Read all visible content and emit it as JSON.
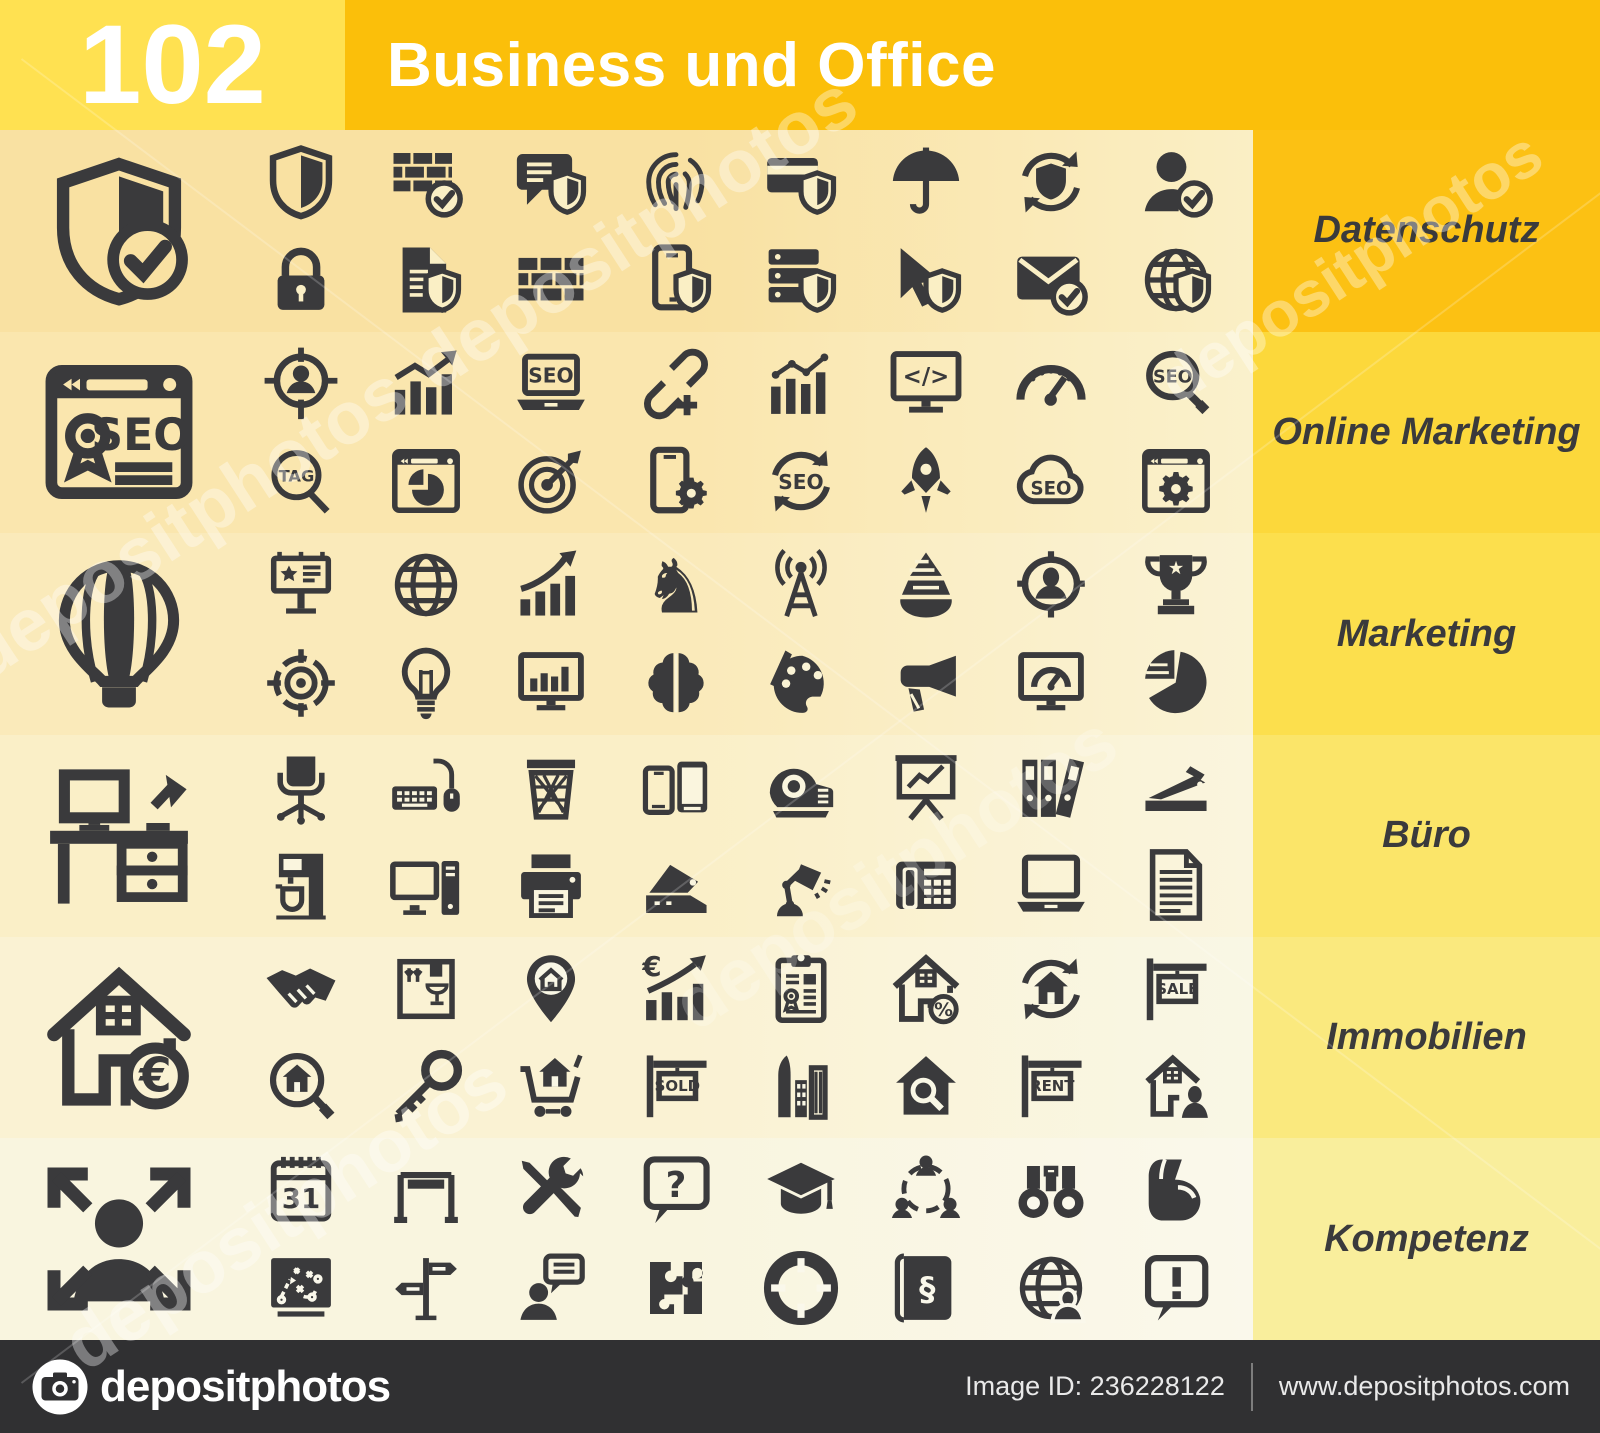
{
  "header": {
    "count": "102",
    "title": "Business und Office"
  },
  "footer": {
    "brand": "depositphotos",
    "image_id": "Image ID: 236228122",
    "url": "www.depositphotos.com"
  },
  "watermark_text": "depositphotos",
  "colors": {
    "count_box": "#FFE151",
    "title_band": "#FBBF0A",
    "footer_bar": "#303032",
    "icon_dark": "#3A3A3C",
    "label_text": "#3A3A3C"
  },
  "rows": [
    {
      "label": "Datenschutz",
      "band_color": "#FCC113",
      "icon_bg": "#F9E1A2",
      "icon_bg_right": "#FAEFC5",
      "large": {
        "name": "shield-check"
      },
      "icons": [
        {
          "name": "shield"
        },
        {
          "name": "firewall-check"
        },
        {
          "name": "chat-shield"
        },
        {
          "name": "fingerprint"
        },
        {
          "name": "credit-card-shield"
        },
        {
          "name": "umbrella"
        },
        {
          "name": "shield-sync"
        },
        {
          "name": "user-check"
        },
        {
          "name": "padlock"
        },
        {
          "name": "document-shield"
        },
        {
          "name": "brick-wall"
        },
        {
          "name": "smartphone-shield"
        },
        {
          "name": "server-shield"
        },
        {
          "name": "cursor-shield"
        },
        {
          "name": "mail-check"
        },
        {
          "name": "globe-shield"
        }
      ]
    },
    {
      "label": "Online Marketing",
      "band_color": "#FCD83B",
      "icon_bg": "#FAE6AE",
      "icon_bg_right": "#FAF1CC",
      "large": {
        "name": "seo-browser",
        "text": "SEO"
      },
      "icons": [
        {
          "name": "target-audience"
        },
        {
          "name": "growth-chart"
        },
        {
          "name": "laptop-seo",
          "text": "SEO"
        },
        {
          "name": "link-plus"
        },
        {
          "name": "analytics-chart"
        },
        {
          "name": "code-monitor",
          "text": "</>"
        },
        {
          "name": "speedometer"
        },
        {
          "name": "seo-magnifier",
          "text": "SEO"
        },
        {
          "name": "tag-magnifier",
          "text": "TAG"
        },
        {
          "name": "browser-pie-chart"
        },
        {
          "name": "dartboard"
        },
        {
          "name": "smartphone-gear"
        },
        {
          "name": "seo-sync",
          "text": "SEO"
        },
        {
          "name": "rocket"
        },
        {
          "name": "seo-cloud",
          "text": "SEO"
        },
        {
          "name": "browser-gear"
        }
      ]
    },
    {
      "label": "Marketing",
      "band_color": "#FCDF4D",
      "icon_bg": "#FAEABA",
      "icon_bg_right": "#FAF3D5",
      "large": {
        "name": "hot-air-balloon"
      },
      "icons": [
        {
          "name": "billboard"
        },
        {
          "name": "globe"
        },
        {
          "name": "growth-arrow"
        },
        {
          "name": "chess-knight"
        },
        {
          "name": "broadcast-tower"
        },
        {
          "name": "sales-funnel"
        },
        {
          "name": "target-user"
        },
        {
          "name": "trophy"
        },
        {
          "name": "crosshair"
        },
        {
          "name": "lightbulb"
        },
        {
          "name": "monitor-chart"
        },
        {
          "name": "brain"
        },
        {
          "name": "paint-palette"
        },
        {
          "name": "megaphone"
        },
        {
          "name": "monitor-gauge"
        },
        {
          "name": "pie-chart"
        }
      ]
    },
    {
      "label": "Büro",
      "band_color": "#FBE569",
      "icon_bg": "#FAEFC7",
      "icon_bg_right": "#FAF5DE",
      "large": {
        "name": "office-desk"
      },
      "icons": [
        {
          "name": "office-chair"
        },
        {
          "name": "keyboard-mouse"
        },
        {
          "name": "waste-basket"
        },
        {
          "name": "phone-tablet"
        },
        {
          "name": "tape-dispenser"
        },
        {
          "name": "presentation-board"
        },
        {
          "name": "ring-binders"
        },
        {
          "name": "stapler"
        },
        {
          "name": "coffee-machine"
        },
        {
          "name": "desktop-computer"
        },
        {
          "name": "printer"
        },
        {
          "name": "hole-punch"
        },
        {
          "name": "desk-lamp"
        },
        {
          "name": "desk-phone"
        },
        {
          "name": "laptop"
        },
        {
          "name": "document"
        }
      ]
    },
    {
      "label": "Immobilien",
      "band_color": "#FAE97E",
      "icon_bg": "#FAF2D3",
      "icon_bg_right": "#F9F7E5",
      "large": {
        "name": "house-euro",
        "text": "€"
      },
      "icons": [
        {
          "name": "handshake"
        },
        {
          "name": "moving-box"
        },
        {
          "name": "house-pin"
        },
        {
          "name": "euro-growth",
          "text": "€"
        },
        {
          "name": "contract-clipboard"
        },
        {
          "name": "house-percent",
          "text": "%"
        },
        {
          "name": "house-sync"
        },
        {
          "name": "sale-sign",
          "text": "SALE"
        },
        {
          "name": "house-magnifier"
        },
        {
          "name": "key"
        },
        {
          "name": "house-cart"
        },
        {
          "name": "sold-sign",
          "text": "SOLD"
        },
        {
          "name": "skyscraper"
        },
        {
          "name": "house-search"
        },
        {
          "name": "rent-sign",
          "text": "RENT"
        },
        {
          "name": "house-agent"
        }
      ]
    },
    {
      "label": "Kompetenz",
      "band_color": "#F9EE9C",
      "icon_bg": "#F9F5DF",
      "icon_bg_right": "#FAF8EB",
      "large": {
        "name": "person-expand-arrows"
      },
      "icons": [
        {
          "name": "calendar",
          "text": "31"
        },
        {
          "name": "hurdle"
        },
        {
          "name": "tools"
        },
        {
          "name": "question-bubble",
          "text": "?"
        },
        {
          "name": "graduation-cap"
        },
        {
          "name": "user-network"
        },
        {
          "name": "binoculars"
        },
        {
          "name": "strong-arm"
        },
        {
          "name": "strategy-board"
        },
        {
          "name": "signpost"
        },
        {
          "name": "consulting-person"
        },
        {
          "name": "puzzle"
        },
        {
          "name": "lifebuoy"
        },
        {
          "name": "law-book",
          "text": "§"
        },
        {
          "name": "globe-user"
        },
        {
          "name": "exclamation-bubble",
          "text": "!"
        }
      ]
    }
  ]
}
